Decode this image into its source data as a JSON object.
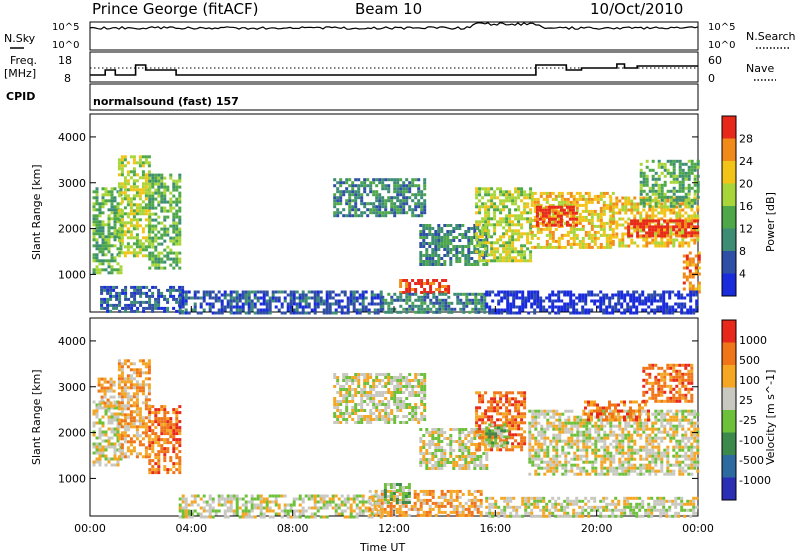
{
  "header": {
    "station": "Prince George (fitACF)",
    "beam": "Beam 10",
    "date": "10/Oct/2010"
  },
  "noise_panel": {
    "left_label": "N.Sky",
    "right_label": "N.Search",
    "tick_top": "10^5",
    "tick_bottom": "10^0"
  },
  "freq_panel": {
    "left_label_1": "Freq.",
    "left_label_2": "[MHz]",
    "left_ticks": [
      "18",
      "8"
    ],
    "right_ticks": [
      "60",
      "0"
    ],
    "right_label": "Nave"
  },
  "cpid_panel": {
    "label": "CPID",
    "program": "normalsound (fast) 157"
  },
  "colors": {
    "power_scale": [
      "#1a2bdc",
      "#2f4fa6",
      "#3d8c74",
      "#4ea84a",
      "#a8d63a",
      "#f2c418",
      "#f28a1a",
      "#e8281a"
    ],
    "velocity_scale": [
      "#2a2eb5",
      "#2d6aa0",
      "#3b8a4c",
      "#6cc03a",
      "#c8c8c0",
      "#f5a623",
      "#f07418",
      "#e8281a"
    ]
  },
  "chart_data": [
    {
      "type": "heatmap",
      "title": "",
      "parameter": "Power",
      "colorbar_label": "Power [dB]",
      "colorbar_ticks": [
        "28",
        "24",
        "20",
        "16",
        "12",
        "8",
        "4"
      ],
      "ylabel": "Slant Range [km]",
      "y_ticks": [
        "4000",
        "3000",
        "2000",
        "1000"
      ],
      "xlim": [
        0,
        24
      ],
      "ylim": [
        180,
        4500
      ],
      "regions": [
        {
          "t0": 0.1,
          "t1": 1.2,
          "r0": 1050,
          "r1": 2900,
          "level": 3
        },
        {
          "t0": 1.1,
          "t1": 2.3,
          "r0": 1400,
          "r1": 3600,
          "level": 4
        },
        {
          "t0": 2.3,
          "t1": 3.5,
          "r0": 1150,
          "r1": 3200,
          "level": 3
        },
        {
          "t0": 0.4,
          "t1": 3.6,
          "r0": 180,
          "r1": 750,
          "level": 1
        },
        {
          "t0": 3.5,
          "t1": 11.5,
          "r0": 180,
          "r1": 650,
          "level": 1
        },
        {
          "t0": 9.6,
          "t1": 13.2,
          "r0": 2300,
          "r1": 3100,
          "level": 2
        },
        {
          "t0": 12.2,
          "t1": 14.2,
          "r0": 630,
          "r1": 900,
          "level": 7
        },
        {
          "t0": 11.5,
          "t1": 15.6,
          "r0": 200,
          "r1": 600,
          "level": 2
        },
        {
          "t0": 13.0,
          "t1": 15.7,
          "r0": 1200,
          "r1": 2100,
          "level": 2
        },
        {
          "t0": 15.2,
          "t1": 17.4,
          "r0": 1300,
          "r1": 2900,
          "level": 4
        },
        {
          "t0": 17.4,
          "t1": 20.7,
          "r0": 1600,
          "r1": 2800,
          "level": 5
        },
        {
          "t0": 17.6,
          "t1": 19.2,
          "r0": 2100,
          "r1": 2500,
          "level": 7
        },
        {
          "t0": 20.5,
          "t1": 24.0,
          "r0": 1650,
          "r1": 2700,
          "level": 5
        },
        {
          "t0": 21.2,
          "t1": 24.0,
          "r0": 1850,
          "r1": 2200,
          "level": 7
        },
        {
          "t0": 21.7,
          "t1": 24.0,
          "r0": 2500,
          "r1": 3500,
          "level": 3
        },
        {
          "t0": 23.4,
          "t1": 24.0,
          "r0": 600,
          "r1": 1500,
          "level": 6
        },
        {
          "t0": 15.6,
          "t1": 24.0,
          "r0": 180,
          "r1": 650,
          "level": 0
        }
      ]
    },
    {
      "type": "heatmap",
      "title": "",
      "parameter": "Velocity",
      "colorbar_label": "Velocity [m s^-1]",
      "colorbar_ticks": [
        "1000",
        "500",
        "100",
        "25",
        "-25",
        "-100",
        "-500",
        "-1000"
      ],
      "ylabel": "Slant Range [km]",
      "y_ticks": [
        "4000",
        "3000",
        "2000",
        "1000"
      ],
      "xlabel": "Time UT",
      "x_ticks": [
        "00:00",
        "04:00",
        "08:00",
        "12:00",
        "16:00",
        "20:00",
        "00:00"
      ],
      "xlim": [
        0,
        24
      ],
      "ylim": [
        180,
        4500
      ],
      "regions": [
        {
          "t0": 0.1,
          "t1": 1.2,
          "r0": 1300,
          "r1": 2700,
          "level": 4
        },
        {
          "t0": 0.3,
          "t1": 1.0,
          "r0": 2600,
          "r1": 3200,
          "level": 5
        },
        {
          "t0": 1.1,
          "t1": 2.3,
          "r0": 1500,
          "r1": 3600,
          "level": 5
        },
        {
          "t0": 2.3,
          "t1": 3.5,
          "r0": 1100,
          "r1": 2600,
          "level": 6
        },
        {
          "t0": 3.5,
          "t1": 11.5,
          "r0": 180,
          "r1": 650,
          "level": 4
        },
        {
          "t0": 9.6,
          "t1": 13.2,
          "r0": 2200,
          "r1": 3300,
          "level": 4
        },
        {
          "t0": 11.0,
          "t1": 15.4,
          "r0": 200,
          "r1": 750,
          "level": 5
        },
        {
          "t0": 11.6,
          "t1": 12.6,
          "r0": 500,
          "r1": 900,
          "level": 3
        },
        {
          "t0": 13.0,
          "t1": 15.7,
          "r0": 1200,
          "r1": 2100,
          "level": 4
        },
        {
          "t0": 15.2,
          "t1": 17.2,
          "r0": 1600,
          "r1": 2900,
          "level": 6
        },
        {
          "t0": 15.6,
          "t1": 16.5,
          "r0": 1700,
          "r1": 2200,
          "level": 3
        },
        {
          "t0": 17.3,
          "t1": 24.0,
          "r0": 1100,
          "r1": 2500,
          "level": 4
        },
        {
          "t0": 19.5,
          "t1": 22.0,
          "r0": 2300,
          "r1": 2700,
          "level": 6
        },
        {
          "t0": 21.8,
          "t1": 23.8,
          "r0": 2700,
          "r1": 3500,
          "level": 6
        },
        {
          "t0": 15.6,
          "t1": 24.0,
          "r0": 180,
          "r1": 600,
          "level": 4
        }
      ]
    }
  ]
}
